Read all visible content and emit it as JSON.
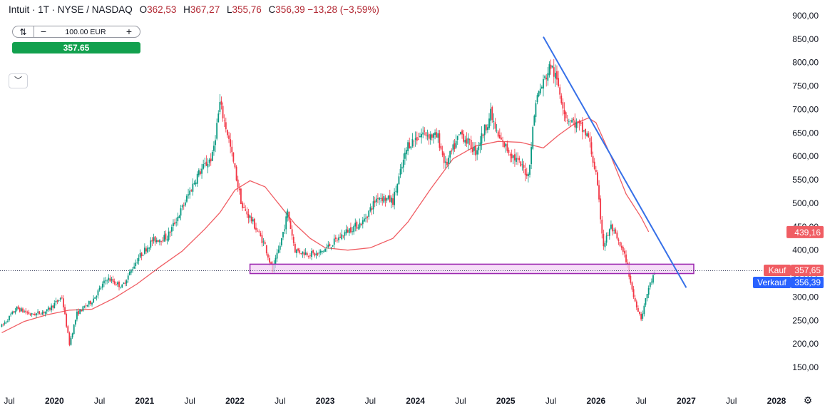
{
  "legend": {
    "symbol": "Intuit · 1T · NYSE / NASDAQ",
    "o_label": "O",
    "o": "362,53",
    "h_label": "H",
    "h": "367,27",
    "l_label": "L",
    "l": "355,76",
    "c_label": "C",
    "c": "356,39",
    "change": "−13,28 (−3,59%)"
  },
  "trade": {
    "qty": "100.00 EUR",
    "price": "357.65",
    "minus": "−",
    "plus": "+"
  },
  "icons": {
    "swap": "swap-icon",
    "collapse": "chevron-down-icon",
    "settings": "gear-icon"
  },
  "colors": {
    "up": "#089981",
    "down": "#f23645",
    "ma": "#f05d63",
    "trendline": "#3670e8",
    "zone_border": "#9c27b0",
    "zone_fill": "#f3d3f5",
    "kauf": "#f05d63",
    "verkauf": "#2962ff",
    "ma_label": "#f05d63"
  },
  "price_labels": {
    "ma_value": "439,16",
    "kauf_label": "Kauf",
    "kauf_value": "357,65",
    "verkauf_label": "Verkauf",
    "verkauf_value": "356,39"
  },
  "chart_data": {
    "type": "candlestick",
    "title": "",
    "y_ticks": [
      "900,00",
      "850,00",
      "800,00",
      "750,00",
      "700,00",
      "650,00",
      "600,00",
      "550,00",
      "500,00",
      "450,00",
      "400,00",
      "350,00",
      "300,00",
      "250,00",
      "200,00",
      "150,00"
    ],
    "y_tick_values": [
      900,
      850,
      800,
      750,
      700,
      650,
      600,
      550,
      500,
      450,
      400,
      350,
      300,
      250,
      200,
      150
    ],
    "ylim": [
      90,
      910
    ],
    "x_ticks": [
      "Jul",
      "2020",
      "Jul",
      "2021",
      "Jul",
      "2022",
      "Jul",
      "2023",
      "Jul",
      "2024",
      "Jul",
      "2025",
      "Jul",
      "2026",
      "Jul",
      "2027",
      "Jul",
      "2028"
    ],
    "x_tick_dates": [
      "2019-07",
      "2020-01",
      "2020-07",
      "2021-01",
      "2021-07",
      "2022-01",
      "2022-07",
      "2023-01",
      "2023-07",
      "2024-01",
      "2024-07",
      "2025-01",
      "2025-07",
      "2026-01",
      "2026-07",
      "2027-01",
      "2027-07",
      "2028-01"
    ],
    "price_path": [
      [
        "2019-06",
        238
      ],
      [
        "2019-08",
        276
      ],
      [
        "2019-10",
        262
      ],
      [
        "2019-12",
        270
      ],
      [
        "2020-02",
        300
      ],
      [
        "2020-03",
        200
      ],
      [
        "2020-04",
        265
      ],
      [
        "2020-06",
        292
      ],
      [
        "2020-08",
        340
      ],
      [
        "2020-10",
        322
      ],
      [
        "2020-12",
        380
      ],
      [
        "2021-02",
        420
      ],
      [
        "2021-04",
        428
      ],
      [
        "2021-06",
        490
      ],
      [
        "2021-08",
        560
      ],
      [
        "2021-10",
        600
      ],
      [
        "2021-11",
        712
      ],
      [
        "2021-12",
        650
      ],
      [
        "2022-02",
        490
      ],
      [
        "2022-03",
        470
      ],
      [
        "2022-05",
        410
      ],
      [
        "2022-06",
        355
      ],
      [
        "2022-07",
        410
      ],
      [
        "2022-08",
        480
      ],
      [
        "2022-09",
        400
      ],
      [
        "2022-10",
        395
      ],
      [
        "2022-12",
        390
      ],
      [
        "2023-02",
        415
      ],
      [
        "2023-04",
        442
      ],
      [
        "2023-06",
        460
      ],
      [
        "2023-08",
        515
      ],
      [
        "2023-10",
        505
      ],
      [
        "2023-12",
        625
      ],
      [
        "2024-02",
        650
      ],
      [
        "2024-04",
        640
      ],
      [
        "2024-05",
        580
      ],
      [
        "2024-07",
        650
      ],
      [
        "2024-09",
        610
      ],
      [
        "2024-11",
        690
      ],
      [
        "2024-12",
        640
      ],
      [
        "2025-02",
        600
      ],
      [
        "2025-04",
        560
      ],
      [
        "2025-05",
        720
      ],
      [
        "2025-07",
        795
      ],
      [
        "2025-08",
        750
      ],
      [
        "2025-09",
        685
      ],
      [
        "2025-11",
        660
      ],
      [
        "2025-12",
        640
      ],
      [
        "2026-01",
        560
      ],
      [
        "2026-02",
        410
      ],
      [
        "2026-03",
        450
      ],
      [
        "2026-05",
        380
      ],
      [
        "2026-06",
        300
      ],
      [
        "2026-07",
        255
      ],
      [
        "2026-08",
        320
      ],
      [
        "2026-09",
        358
      ]
    ],
    "moving_average": [
      [
        "2019-06",
        224
      ],
      [
        "2019-09",
        248
      ],
      [
        "2019-12",
        262
      ],
      [
        "2020-03",
        272
      ],
      [
        "2020-06",
        274
      ],
      [
        "2020-09",
        298
      ],
      [
        "2020-12",
        328
      ],
      [
        "2021-03",
        364
      ],
      [
        "2021-06",
        398
      ],
      [
        "2021-09",
        445
      ],
      [
        "2021-11",
        480
      ],
      [
        "2022-01",
        528
      ],
      [
        "2022-03",
        548
      ],
      [
        "2022-05",
        535
      ],
      [
        "2022-07",
        495
      ],
      [
        "2022-09",
        455
      ],
      [
        "2022-11",
        425
      ],
      [
        "2023-01",
        405
      ],
      [
        "2023-04",
        400
      ],
      [
        "2023-07",
        405
      ],
      [
        "2023-10",
        425
      ],
      [
        "2023-12",
        460
      ],
      [
        "2024-03",
        530
      ],
      [
        "2024-06",
        595
      ],
      [
        "2024-09",
        622
      ],
      [
        "2024-12",
        632
      ],
      [
        "2025-03",
        630
      ],
      [
        "2025-06",
        618
      ],
      [
        "2025-08",
        645
      ],
      [
        "2025-10",
        668
      ],
      [
        "2025-12",
        682
      ],
      [
        "2026-01",
        672
      ],
      [
        "2026-03",
        600
      ],
      [
        "2026-05",
        520
      ],
      [
        "2026-07",
        470
      ],
      [
        "2026-08",
        439
      ]
    ],
    "trendline": {
      "start": [
        "2025-06",
        855
      ],
      "end": [
        "2027-01",
        320
      ]
    },
    "support_zone": {
      "from": "2022-03",
      "to": "2027-02",
      "low": 350,
      "high": 370
    },
    "current_price": 357.65,
    "ma_last": 439.16
  }
}
